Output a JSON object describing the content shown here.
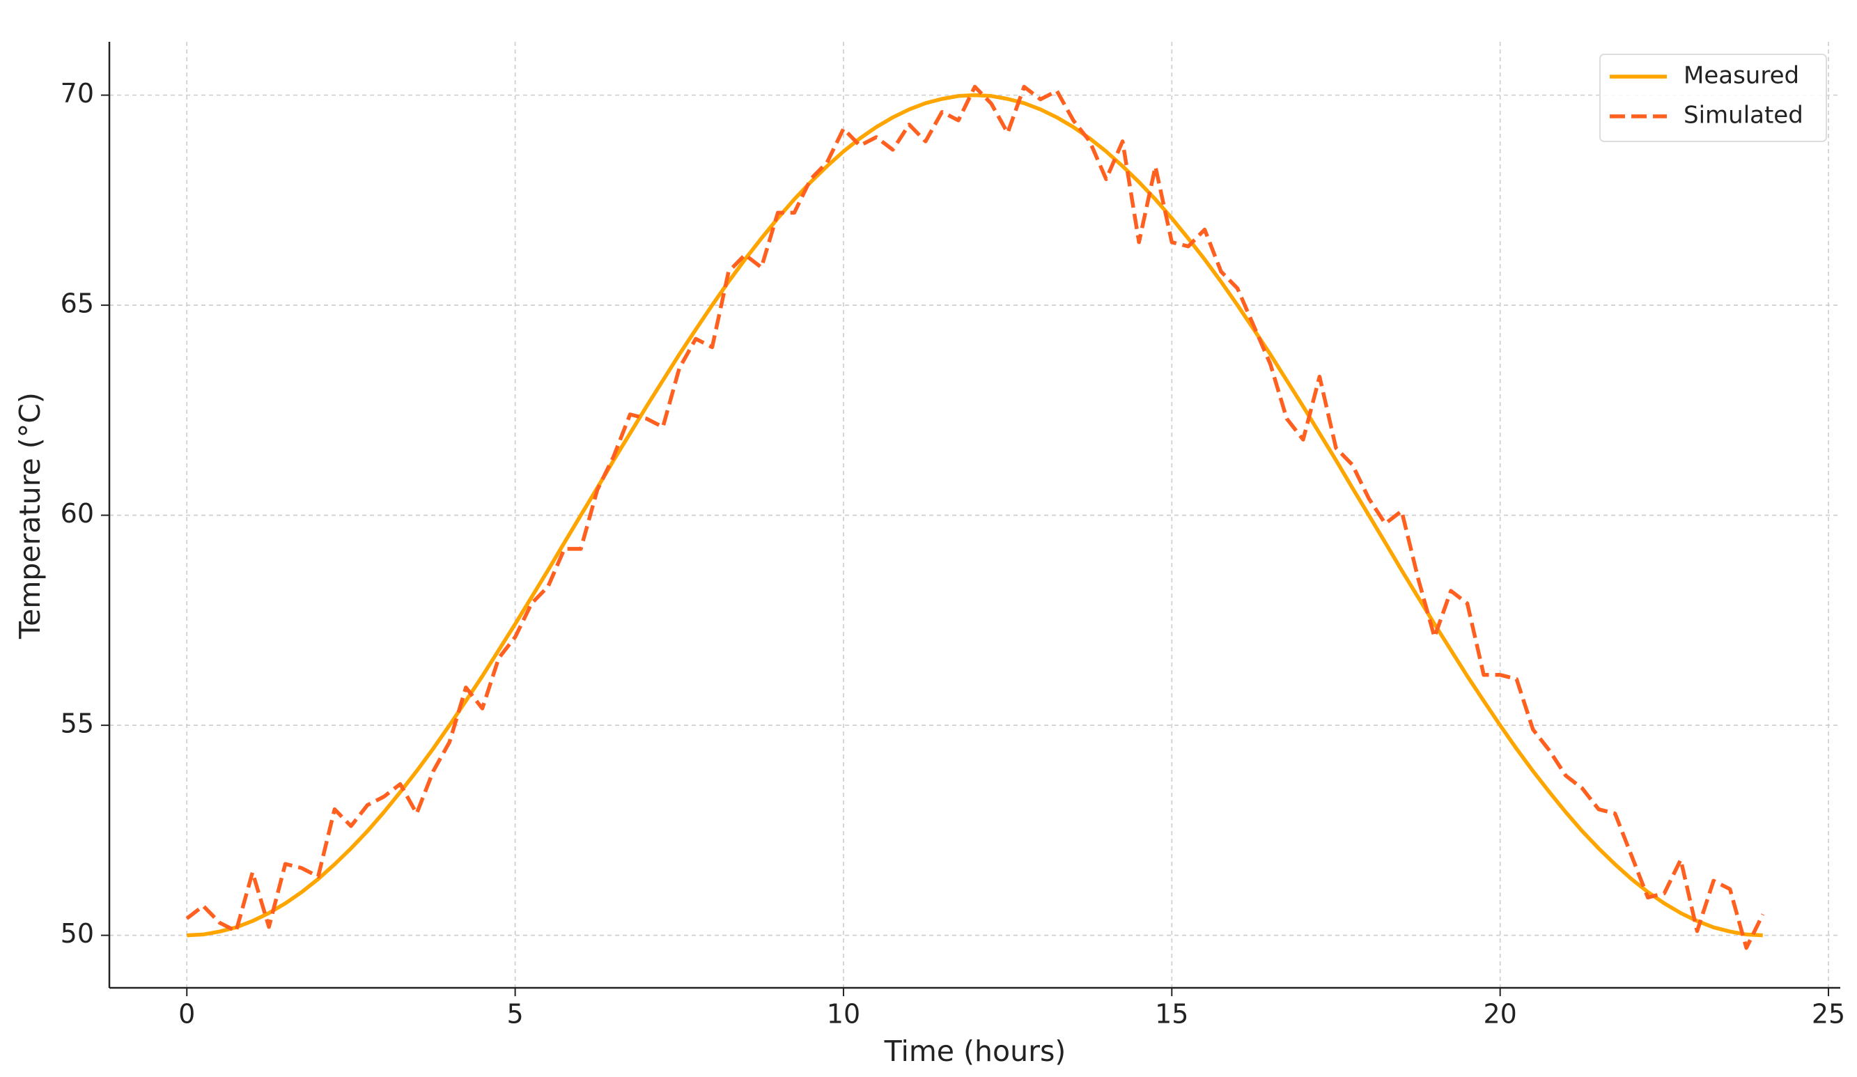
{
  "chart_data": {
    "type": "line",
    "xlabel": "Time (hours)",
    "ylabel": "Temperature (°C)",
    "x": [
      0,
      0.25,
      0.5,
      0.75,
      1,
      1.25,
      1.5,
      1.75,
      2,
      2.25,
      2.5,
      2.75,
      3,
      3.25,
      3.5,
      3.75,
      4,
      4.25,
      4.5,
      4.75,
      5,
      5.25,
      5.5,
      5.75,
      6,
      6.25,
      6.5,
      6.75,
      7,
      7.25,
      7.5,
      7.75,
      8,
      8.25,
      8.5,
      8.75,
      9,
      9.25,
      9.5,
      9.75,
      10,
      10.25,
      10.5,
      10.75,
      11,
      11.25,
      11.5,
      11.75,
      12,
      12.25,
      12.5,
      12.75,
      13,
      13.25,
      13.5,
      13.75,
      14,
      14.25,
      14.5,
      14.75,
      15,
      15.25,
      15.5,
      15.75,
      16,
      16.25,
      16.5,
      16.75,
      17,
      17.25,
      17.5,
      17.75,
      18,
      18.25,
      18.5,
      18.75,
      19,
      19.25,
      19.5,
      19.75,
      20,
      20.25,
      20.5,
      20.75,
      21,
      21.25,
      21.5,
      21.75,
      22,
      22.25,
      22.5,
      22.75,
      23,
      23.25,
      23.5,
      23.75,
      24
    ],
    "series": [
      {
        "name": "Measured",
        "color": "#ffa500",
        "dash": false,
        "values": [
          50,
          50.02,
          50.09,
          50.19,
          50.34,
          50.53,
          50.76,
          51.03,
          51.34,
          51.69,
          52.07,
          52.48,
          52.93,
          53.41,
          53.91,
          54.44,
          55,
          55.58,
          56.17,
          56.79,
          57.41,
          58.05,
          58.69,
          59.35,
          60,
          60.65,
          61.31,
          61.95,
          62.59,
          63.21,
          63.83,
          64.42,
          65,
          65.56,
          66.09,
          66.59,
          67.07,
          67.52,
          67.93,
          68.31,
          68.66,
          68.97,
          69.24,
          69.47,
          69.66,
          69.81,
          69.91,
          69.98,
          70,
          69.98,
          69.91,
          69.81,
          69.66,
          69.47,
          69.24,
          68.97,
          68.66,
          68.31,
          67.93,
          67.52,
          67.07,
          66.59,
          66.09,
          65.56,
          65,
          64.42,
          63.83,
          63.21,
          62.59,
          61.95,
          61.31,
          60.65,
          60,
          59.35,
          58.69,
          58.05,
          57.41,
          56.79,
          56.17,
          55.58,
          55,
          54.44,
          53.91,
          53.41,
          52.93,
          52.48,
          52.07,
          51.69,
          51.34,
          51.03,
          50.76,
          50.53,
          50.34,
          50.19,
          50.09,
          50.02,
          50
        ]
      },
      {
        "name": "Simulated",
        "color": "#ff5f1f",
        "dash": true,
        "values": [
          50.4,
          50.7,
          50.3,
          50.1,
          51.5,
          50.2,
          51.7,
          51.6,
          51.4,
          53.0,
          52.6,
          53.1,
          53.3,
          53.6,
          52.9,
          53.9,
          54.6,
          55.9,
          55.4,
          56.6,
          57.1,
          57.9,
          58.3,
          59.2,
          59.2,
          60.6,
          61.4,
          62.4,
          62.3,
          62.1,
          63.5,
          64.2,
          64.0,
          65.8,
          66.2,
          65.9,
          67.2,
          67.2,
          68.0,
          68.4,
          69.2,
          68.8,
          69.0,
          68.7,
          69.3,
          68.9,
          69.6,
          69.4,
          70.2,
          69.8,
          69.1,
          70.2,
          69.9,
          70.1,
          69.4,
          68.9,
          68.0,
          68.9,
          66.5,
          68.3,
          66.5,
          66.4,
          66.8,
          65.8,
          65.4,
          64.5,
          63.6,
          62.3,
          61.8,
          63.3,
          61.6,
          61.2,
          60.4,
          59.8,
          60.1,
          58.5,
          57.1,
          58.2,
          57.9,
          56.2,
          56.2,
          56.1,
          54.9,
          54.4,
          53.8,
          53.5,
          53.0,
          52.9,
          51.9,
          50.9,
          51.0,
          51.8,
          50.1,
          51.3,
          51.1,
          49.7,
          50.5
        ]
      }
    ],
    "xlim": [
      -1.18,
      25.18
    ],
    "ylim": [
      48.75,
      71.27
    ],
    "xticks": [
      0,
      5,
      10,
      15,
      20,
      25
    ],
    "yticks": [
      50,
      55,
      60,
      65,
      70
    ],
    "grid": true,
    "legend": "upper right"
  }
}
